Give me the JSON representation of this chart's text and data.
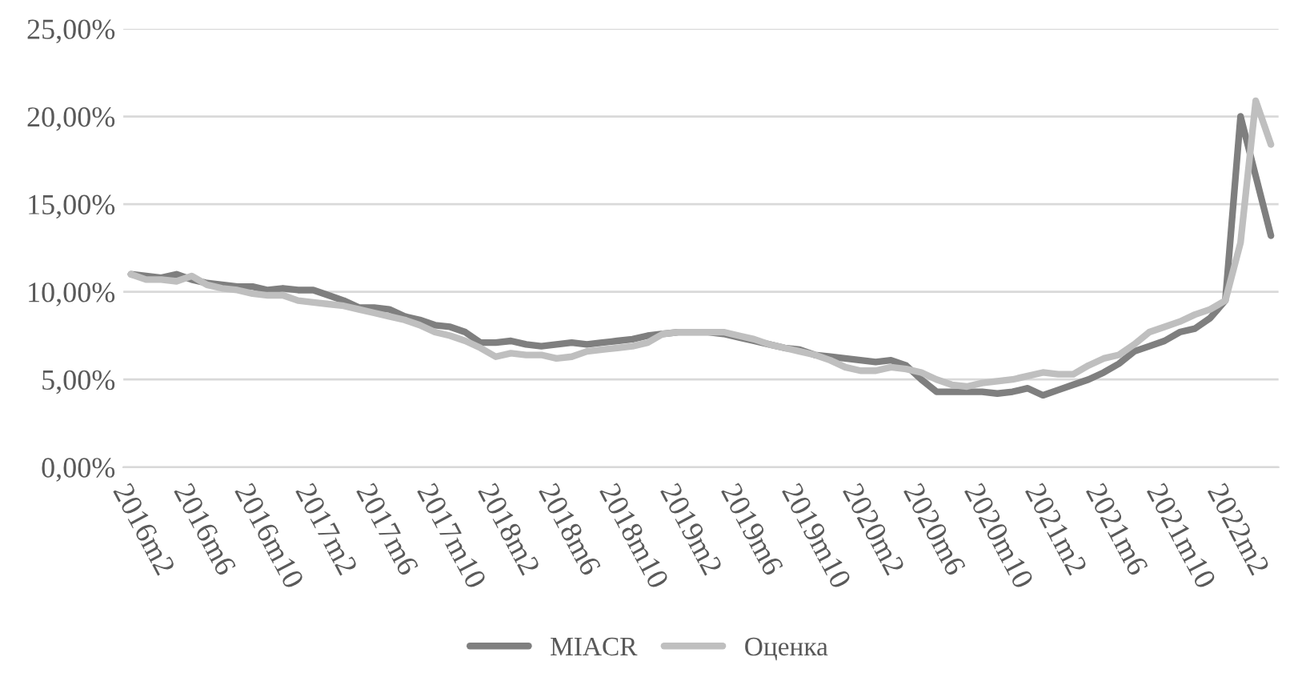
{
  "chart_data": {
    "type": "line",
    "categories": [
      "2016m2",
      null,
      null,
      null,
      "2016m6",
      null,
      null,
      null,
      "2016m10",
      null,
      null,
      null,
      "2017m2",
      null,
      null,
      null,
      "2017m6",
      null,
      null,
      null,
      "2017m10",
      null,
      null,
      null,
      "2018m2",
      null,
      null,
      null,
      "2018m6",
      null,
      null,
      null,
      "2018m10",
      null,
      null,
      null,
      "2019m2",
      null,
      null,
      null,
      "2019m6",
      null,
      null,
      null,
      "2019m10",
      null,
      null,
      null,
      "2020m2",
      null,
      null,
      null,
      "2020m6",
      null,
      null,
      null,
      "2020m10",
      null,
      null,
      null,
      "2021m2",
      null,
      null,
      null,
      "2021m6",
      null,
      null,
      null,
      "2021m10",
      null,
      null,
      null,
      "2022m2",
      null,
      null,
      null
    ],
    "series": [
      {
        "name": "MIACR",
        "color": "#7f7f7f",
        "values": [
          11.0,
          10.9,
          10.8,
          11.0,
          10.7,
          10.5,
          10.4,
          10.3,
          10.3,
          10.1,
          10.2,
          10.1,
          10.1,
          9.8,
          9.5,
          9.1,
          9.1,
          9.0,
          8.6,
          8.4,
          8.1,
          8.0,
          7.7,
          7.1,
          7.1,
          7.2,
          7.0,
          6.9,
          7.0,
          7.1,
          7.0,
          7.1,
          7.2,
          7.3,
          7.5,
          7.6,
          7.7,
          7.7,
          7.7,
          7.6,
          7.4,
          7.2,
          7.0,
          6.8,
          6.7,
          6.4,
          6.3,
          6.2,
          6.1,
          6.0,
          6.1,
          5.8,
          5.0,
          4.3,
          4.3,
          4.3,
          4.3,
          4.2,
          4.3,
          4.5,
          4.1,
          4.4,
          4.7,
          5.0,
          5.4,
          5.9,
          6.6,
          6.9,
          7.2,
          7.7,
          7.9,
          8.5,
          9.5,
          20.0,
          16.6,
          13.2
        ]
      },
      {
        "name": "Оценка",
        "color": "#bfbfbf",
        "values": [
          11.0,
          10.7,
          10.7,
          10.6,
          10.9,
          10.4,
          10.2,
          10.1,
          9.9,
          9.8,
          9.8,
          9.5,
          9.4,
          9.3,
          9.2,
          9.0,
          8.8,
          8.6,
          8.4,
          8.1,
          7.7,
          7.5,
          7.2,
          6.8,
          6.3,
          6.5,
          6.4,
          6.4,
          6.2,
          6.3,
          6.6,
          6.7,
          6.8,
          6.9,
          7.1,
          7.6,
          7.7,
          7.7,
          7.7,
          7.7,
          7.5,
          7.3,
          7.0,
          6.8,
          6.6,
          6.4,
          6.1,
          5.7,
          5.5,
          5.5,
          5.7,
          5.6,
          5.4,
          5.0,
          4.7,
          4.6,
          4.8,
          4.9,
          5.0,
          5.2,
          5.4,
          5.3,
          5.3,
          5.8,
          6.2,
          6.4,
          7.0,
          7.7,
          8.0,
          8.3,
          8.7,
          9.0,
          9.5,
          12.8,
          20.9,
          18.4
        ]
      }
    ],
    "ylim": [
      0,
      25
    ],
    "yticks": [
      {
        "value": 0,
        "label": "0,00%"
      },
      {
        "value": 5,
        "label": "5,00%"
      },
      {
        "value": 10,
        "label": "10,00%"
      },
      {
        "value": 15,
        "label": "15,00%"
      },
      {
        "value": 20,
        "label": "20,00%"
      },
      {
        "value": 25,
        "label": "25,00%"
      }
    ],
    "grid": "y",
    "legend": "bottom",
    "marker": "none",
    "line_style": "solid"
  }
}
